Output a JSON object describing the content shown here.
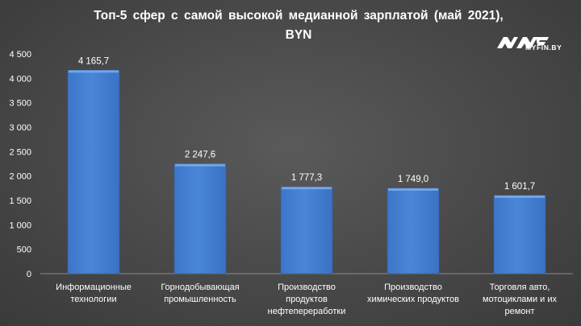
{
  "brand": {
    "logo_text": "MYFIN.BY",
    "logo_icon": "myfin-logo-icon",
    "bar_color": "#4a86d8"
  },
  "chart_data": {
    "type": "bar",
    "title": "Топ-5  сфер  с самой  высокой  медианной  зарплатой  (май 2021),",
    "subtitle": "BYN",
    "categories": [
      [
        "Информационные",
        "технологии"
      ],
      [
        "Горнодобывающая",
        "промышленность"
      ],
      [
        "Производство",
        "продуктов",
        "нефтепереработки"
      ],
      [
        "Производство",
        "химических продуктов"
      ],
      [
        "Торговля авто,",
        "мотоциклами и их",
        "ремонт"
      ]
    ],
    "values": [
      4165.7,
      2247.6,
      1777.3,
      1749.0,
      1601.7
    ],
    "value_labels": [
      "4 165,7",
      "2 247,6",
      "1 777,3",
      "1 749,0",
      "1 601,7"
    ],
    "ylim": [
      0,
      4500
    ],
    "yticks": [
      0,
      500,
      1000,
      1500,
      2000,
      2500,
      3000,
      3500,
      4000,
      4500
    ],
    "ytick_labels": [
      "0",
      "500",
      "1 000",
      "1 500",
      "2 000",
      "2 500",
      "3 000",
      "3 500",
      "4 000",
      "4 500"
    ],
    "grid": false,
    "legend": "none"
  }
}
